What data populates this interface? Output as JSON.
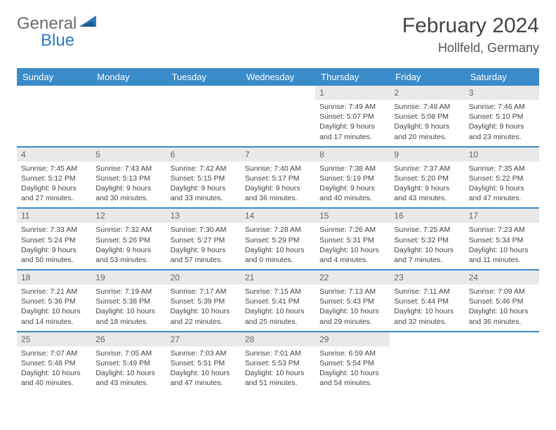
{
  "logo": {
    "general": "General",
    "blue": "Blue"
  },
  "header": {
    "month": "February 2024",
    "location": "Hollfeld, Germany"
  },
  "colors": {
    "header_bg": "#3a8bc9",
    "header_text": "#ffffff",
    "daynum_bg": "#e9e9e9",
    "row_divider": "#3a8bc9",
    "logo_gray": "#6b6b6b",
    "logo_blue": "#2f7bbf"
  },
  "weekdays": [
    "Sunday",
    "Monday",
    "Tuesday",
    "Wednesday",
    "Thursday",
    "Friday",
    "Saturday"
  ],
  "weeks": [
    [
      null,
      null,
      null,
      null,
      {
        "n": "1",
        "sr": "Sunrise: 7:49 AM",
        "ss": "Sunset: 5:07 PM",
        "dl": "Daylight: 9 hours and 17 minutes."
      },
      {
        "n": "2",
        "sr": "Sunrise: 7:48 AM",
        "ss": "Sunset: 5:08 PM",
        "dl": "Daylight: 9 hours and 20 minutes."
      },
      {
        "n": "3",
        "sr": "Sunrise: 7:46 AM",
        "ss": "Sunset: 5:10 PM",
        "dl": "Daylight: 9 hours and 23 minutes."
      }
    ],
    [
      {
        "n": "4",
        "sr": "Sunrise: 7:45 AM",
        "ss": "Sunset: 5:12 PM",
        "dl": "Daylight: 9 hours and 27 minutes."
      },
      {
        "n": "5",
        "sr": "Sunrise: 7:43 AM",
        "ss": "Sunset: 5:13 PM",
        "dl": "Daylight: 9 hours and 30 minutes."
      },
      {
        "n": "6",
        "sr": "Sunrise: 7:42 AM",
        "ss": "Sunset: 5:15 PM",
        "dl": "Daylight: 9 hours and 33 minutes."
      },
      {
        "n": "7",
        "sr": "Sunrise: 7:40 AM",
        "ss": "Sunset: 5:17 PM",
        "dl": "Daylight: 9 hours and 36 minutes."
      },
      {
        "n": "8",
        "sr": "Sunrise: 7:38 AM",
        "ss": "Sunset: 5:19 PM",
        "dl": "Daylight: 9 hours and 40 minutes."
      },
      {
        "n": "9",
        "sr": "Sunrise: 7:37 AM",
        "ss": "Sunset: 5:20 PM",
        "dl": "Daylight: 9 hours and 43 minutes."
      },
      {
        "n": "10",
        "sr": "Sunrise: 7:35 AM",
        "ss": "Sunset: 5:22 PM",
        "dl": "Daylight: 9 hours and 47 minutes."
      }
    ],
    [
      {
        "n": "11",
        "sr": "Sunrise: 7:33 AM",
        "ss": "Sunset: 5:24 PM",
        "dl": "Daylight: 9 hours and 50 minutes."
      },
      {
        "n": "12",
        "sr": "Sunrise: 7:32 AM",
        "ss": "Sunset: 5:26 PM",
        "dl": "Daylight: 9 hours and 53 minutes."
      },
      {
        "n": "13",
        "sr": "Sunrise: 7:30 AM",
        "ss": "Sunset: 5:27 PM",
        "dl": "Daylight: 9 hours and 57 minutes."
      },
      {
        "n": "14",
        "sr": "Sunrise: 7:28 AM",
        "ss": "Sunset: 5:29 PM",
        "dl": "Daylight: 10 hours and 0 minutes."
      },
      {
        "n": "15",
        "sr": "Sunrise: 7:26 AM",
        "ss": "Sunset: 5:31 PM",
        "dl": "Daylight: 10 hours and 4 minutes."
      },
      {
        "n": "16",
        "sr": "Sunrise: 7:25 AM",
        "ss": "Sunset: 5:32 PM",
        "dl": "Daylight: 10 hours and 7 minutes."
      },
      {
        "n": "17",
        "sr": "Sunrise: 7:23 AM",
        "ss": "Sunset: 5:34 PM",
        "dl": "Daylight: 10 hours and 11 minutes."
      }
    ],
    [
      {
        "n": "18",
        "sr": "Sunrise: 7:21 AM",
        "ss": "Sunset: 5:36 PM",
        "dl": "Daylight: 10 hours and 14 minutes."
      },
      {
        "n": "19",
        "sr": "Sunrise: 7:19 AM",
        "ss": "Sunset: 5:38 PM",
        "dl": "Daylight: 10 hours and 18 minutes."
      },
      {
        "n": "20",
        "sr": "Sunrise: 7:17 AM",
        "ss": "Sunset: 5:39 PM",
        "dl": "Daylight: 10 hours and 22 minutes."
      },
      {
        "n": "21",
        "sr": "Sunrise: 7:15 AM",
        "ss": "Sunset: 5:41 PM",
        "dl": "Daylight: 10 hours and 25 minutes."
      },
      {
        "n": "22",
        "sr": "Sunrise: 7:13 AM",
        "ss": "Sunset: 5:43 PM",
        "dl": "Daylight: 10 hours and 29 minutes."
      },
      {
        "n": "23",
        "sr": "Sunrise: 7:11 AM",
        "ss": "Sunset: 5:44 PM",
        "dl": "Daylight: 10 hours and 32 minutes."
      },
      {
        "n": "24",
        "sr": "Sunrise: 7:09 AM",
        "ss": "Sunset: 5:46 PM",
        "dl": "Daylight: 10 hours and 36 minutes."
      }
    ],
    [
      {
        "n": "25",
        "sr": "Sunrise: 7:07 AM",
        "ss": "Sunset: 5:48 PM",
        "dl": "Daylight: 10 hours and 40 minutes."
      },
      {
        "n": "26",
        "sr": "Sunrise: 7:05 AM",
        "ss": "Sunset: 5:49 PM",
        "dl": "Daylight: 10 hours and 43 minutes."
      },
      {
        "n": "27",
        "sr": "Sunrise: 7:03 AM",
        "ss": "Sunset: 5:51 PM",
        "dl": "Daylight: 10 hours and 47 minutes."
      },
      {
        "n": "28",
        "sr": "Sunrise: 7:01 AM",
        "ss": "Sunset: 5:53 PM",
        "dl": "Daylight: 10 hours and 51 minutes."
      },
      {
        "n": "29",
        "sr": "Sunrise: 6:59 AM",
        "ss": "Sunset: 5:54 PM",
        "dl": "Daylight: 10 hours and 54 minutes."
      },
      null,
      null
    ]
  ]
}
